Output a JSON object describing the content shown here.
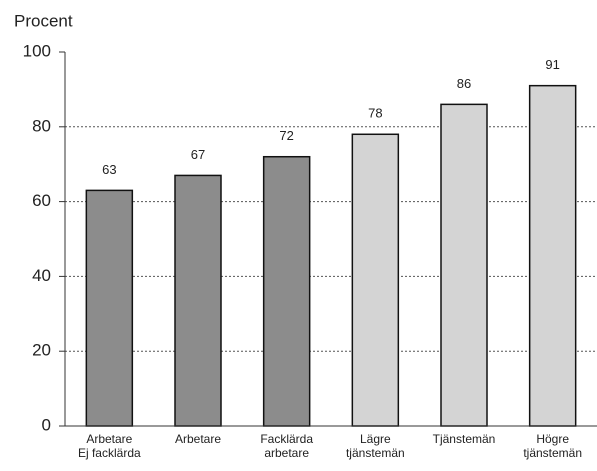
{
  "chart_data": {
    "type": "bar",
    "y_label": "Procent",
    "categories": [
      [
        "Arbetare",
        "Ej facklärda"
      ],
      [
        "Arbetare"
      ],
      [
        "Facklärda",
        "arbetare"
      ],
      [
        "Lägre",
        "tjänstemän"
      ],
      [
        "Tjänstemän"
      ],
      [
        "Högre",
        "tjänstemän"
      ]
    ],
    "values": [
      63,
      67,
      72,
      78,
      86,
      91
    ],
    "colors": [
      "#8c8c8c",
      "#8c8c8c",
      "#8c8c8c",
      "#d4d4d4",
      "#d4d4d4",
      "#d4d4d4"
    ],
    "ylim": [
      0,
      100
    ],
    "yticks": [
      0,
      20,
      40,
      60,
      80,
      100
    ],
    "grid": true
  }
}
